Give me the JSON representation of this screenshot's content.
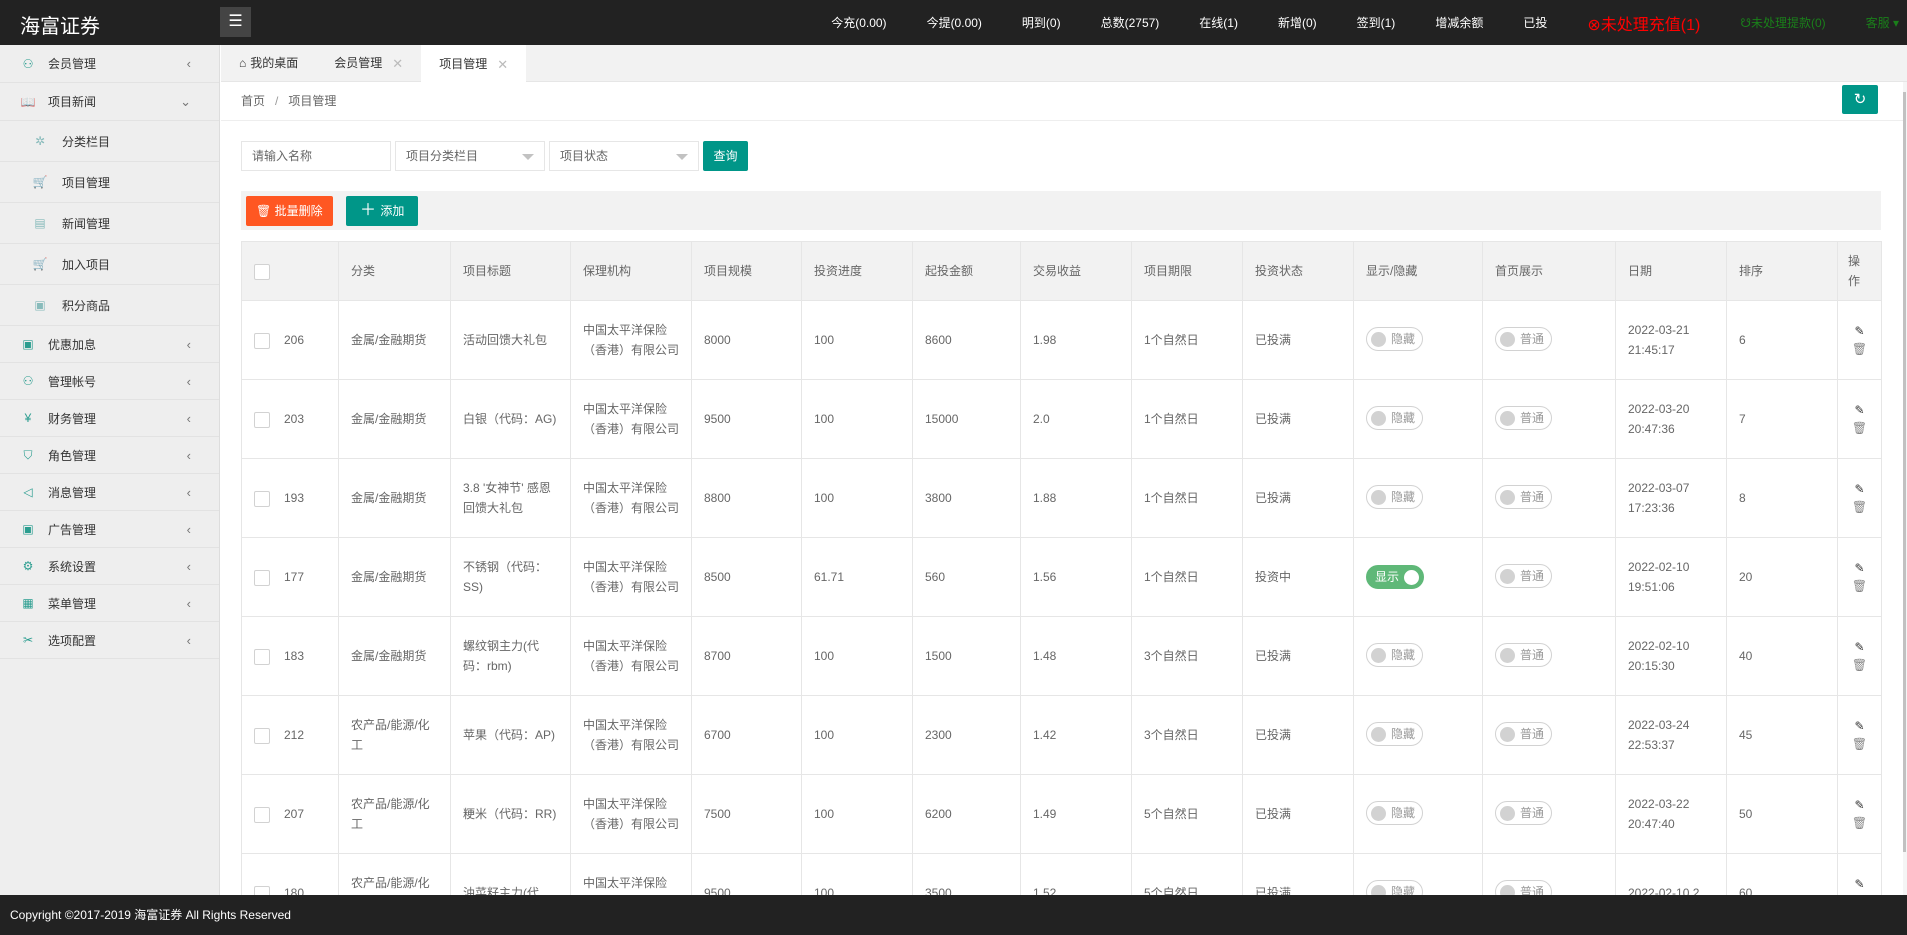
{
  "app": {
    "title": "海富证券",
    "menu_icon": "hamburger-icon"
  },
  "header": {
    "stats": [
      "今充(0.00)",
      "今提(0.00)",
      "明到(0)",
      "总数(2757)",
      "在线(1)",
      "新增(0)",
      "签到(1)",
      "增减余额",
      "已投"
    ],
    "pending_recharge": "⊗未处理充值(1)",
    "pending_withdraw": "☋未处理提款(0)",
    "service": "客服 ▾",
    "colors": {
      "alert": "#ff0000",
      "success": "#1a7f1a"
    }
  },
  "sidebar": {
    "items": [
      {
        "label": "会员管理",
        "icon": "user-icon",
        "type": "top",
        "arrow": "‹"
      },
      {
        "label": "项目新闻",
        "icon": "book-icon",
        "type": "top",
        "arrow": "⌄"
      },
      {
        "label": "分类栏目",
        "icon": "tree-icon",
        "type": "sub"
      },
      {
        "label": "项目管理",
        "icon": "cart-icon",
        "type": "sub"
      },
      {
        "label": "新闻管理",
        "icon": "document-icon",
        "type": "sub"
      },
      {
        "label": "加入项目",
        "icon": "cart-icon",
        "type": "sub"
      },
      {
        "label": "积分商品",
        "icon": "image-icon",
        "type": "sub"
      },
      {
        "label": "优惠加息",
        "icon": "image-icon",
        "type": "mid",
        "arrow": "‹"
      },
      {
        "label": "管理帐号",
        "icon": "users-icon",
        "type": "mid",
        "arrow": "‹"
      },
      {
        "label": "财务管理",
        "icon": "yen-icon",
        "type": "mid",
        "arrow": "‹"
      },
      {
        "label": "角色管理",
        "icon": "shield-icon",
        "type": "mid",
        "arrow": "‹"
      },
      {
        "label": "消息管理",
        "icon": "speaker-icon",
        "type": "mid",
        "arrow": "‹"
      },
      {
        "label": "广告管理",
        "icon": "image-icon",
        "type": "mid",
        "arrow": "‹"
      },
      {
        "label": "系统设置",
        "icon": "gear-icon",
        "type": "mid",
        "arrow": "‹"
      },
      {
        "label": "菜单管理",
        "icon": "grid-icon",
        "type": "mid",
        "arrow": "‹"
      },
      {
        "label": "选项配置",
        "icon": "tools-icon",
        "type": "mid",
        "arrow": "‹"
      }
    ]
  },
  "tabs": [
    {
      "label": "我的桌面",
      "icon": "home-icon"
    },
    {
      "label": "会员管理",
      "closable": true
    },
    {
      "label": "项目管理",
      "closable": true,
      "active": true
    }
  ],
  "breadcrumb": {
    "home": "首页",
    "sep": "/",
    "current": "项目管理"
  },
  "search": {
    "name_placeholder": "请输入名称",
    "category_placeholder": "项目分类栏目",
    "status_placeholder": "项目状态",
    "query": "查询"
  },
  "toolbar": {
    "batch_delete": "批量删除",
    "add": "添加"
  },
  "table": {
    "headers": [
      "分类",
      "项目标题",
      "保理机构",
      "项目规模",
      "投资进度",
      "起投金额",
      "交易收益",
      "项目期限",
      "投资状态",
      "显示/隐藏",
      "首页展示",
      "日期",
      "排序",
      "操作"
    ],
    "rows": [
      {
        "id": "206",
        "cat": "金属/金融期货",
        "title": "活动回馈大礼包",
        "org": "中国太平洋保险（香港）有限公司",
        "scale": "8000",
        "progress": "100",
        "min": "8600",
        "yield": "1.98",
        "term": "1个自然日",
        "status": "已投满",
        "show": "隐藏",
        "show_on": false,
        "home": "普通",
        "date": "2022-03-21 21:45:17",
        "sort": "6"
      },
      {
        "id": "203",
        "cat": "金属/金融期货",
        "title": "白银（代码：AG)",
        "org": "中国太平洋保险（香港）有限公司",
        "scale": "9500",
        "progress": "100",
        "min": "15000",
        "yield": "2.0",
        "term": "1个自然日",
        "status": "已投满",
        "show": "隐藏",
        "show_on": false,
        "home": "普通",
        "date": "2022-03-20 20:47:36",
        "sort": "7"
      },
      {
        "id": "193",
        "cat": "金属/金融期货",
        "title": "3.8 '女神节' 感恩回馈大礼包",
        "org": "中国太平洋保险（香港）有限公司",
        "scale": "8800",
        "progress": "100",
        "min": "3800",
        "yield": "1.88",
        "term": "1个自然日",
        "status": "已投满",
        "show": "隐藏",
        "show_on": false,
        "home": "普通",
        "date": "2022-03-07 17:23:36",
        "sort": "8"
      },
      {
        "id": "177",
        "cat": "金属/金融期货",
        "title": "不锈钢（代码：SS)",
        "org": "中国太平洋保险（香港）有限公司",
        "scale": "8500",
        "progress": "61.71",
        "min": "560",
        "yield": "1.56",
        "term": "1个自然日",
        "status": "投资中",
        "show": "显示",
        "show_on": true,
        "home": "普通",
        "date": "2022-02-10 19:51:06",
        "sort": "20"
      },
      {
        "id": "183",
        "cat": "金属/金融期货",
        "title": "螺纹钢主力(代码：rbm)",
        "org": "中国太平洋保险（香港）有限公司",
        "scale": "8700",
        "progress": "100",
        "min": "1500",
        "yield": "1.48",
        "term": "3个自然日",
        "status": "已投满",
        "show": "隐藏",
        "show_on": false,
        "home": "普通",
        "date": "2022-02-10 20:15:30",
        "sort": "40"
      },
      {
        "id": "212",
        "cat": "农产品/能源/化工",
        "title": "苹果（代码：AP)",
        "org": "中国太平洋保险（香港）有限公司",
        "scale": "6700",
        "progress": "100",
        "min": "2300",
        "yield": "1.42",
        "term": "3个自然日",
        "status": "已投满",
        "show": "隐藏",
        "show_on": false,
        "home": "普通",
        "date": "2022-03-24 22:53:37",
        "sort": "45"
      },
      {
        "id": "207",
        "cat": "农产品/能源/化工",
        "title": "粳米（代码：RR)",
        "org": "中国太平洋保险（香港）有限公司",
        "scale": "7500",
        "progress": "100",
        "min": "6200",
        "yield": "1.49",
        "term": "5个自然日",
        "status": "已投满",
        "show": "隐藏",
        "show_on": false,
        "home": "普通",
        "date": "2022-03-22 20:47:40",
        "sort": "50"
      },
      {
        "id": "180",
        "cat": "农产品/能源/化工",
        "title": "油菜籽主力(代",
        "org": "中国太平洋保险（香港）有限公司",
        "scale": "9500",
        "progress": "100",
        "min": "3500",
        "yield": "1.52",
        "term": "5个自然日",
        "status": "已投满",
        "show": "隐藏",
        "show_on": false,
        "home": "普通",
        "date": "2022-02-10 2",
        "sort": "60"
      }
    ]
  },
  "footer": {
    "text": "Copyright ©2017-2019 海富证券 All Rights Reserved"
  }
}
